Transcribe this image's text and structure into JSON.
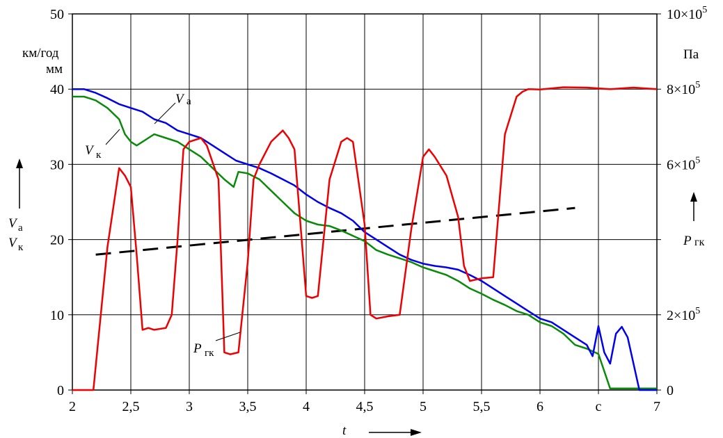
{
  "chart_data": {
    "type": "line",
    "xlim": [
      2,
      7
    ],
    "ylim": [
      0,
      50
    ],
    "y2lim": [
      0,
      1000000
    ],
    "grid": true,
    "x_ticks": [
      "2",
      "2,5",
      "3",
      "3,5",
      "4",
      "4,5",
      "5",
      "5,5",
      "6",
      "c",
      "7"
    ],
    "y_ticks": [
      "0",
      "10",
      "20",
      "30",
      "40",
      "50"
    ],
    "y2_ticks": [
      {
        "value": 0,
        "mant": "0",
        "exp": ""
      },
      {
        "value": 200000,
        "mant": "2×10",
        "exp": "5"
      },
      {
        "value": 600000,
        "mant": "6×10",
        "exp": "5"
      },
      {
        "value": 800000,
        "mant": "8×10",
        "exp": "5"
      },
      {
        "value": 1000000,
        "mant": "10×10",
        "exp": "5"
      }
    ],
    "left_units": [
      "км/год",
      "мм"
    ],
    "right_unit": "Па",
    "x_label": "t",
    "left_axis_label": {
      "var1": "V",
      "sub1": "а",
      "var2": "V",
      "sub2": "к"
    },
    "right_axis_label": {
      "var": "P",
      "sub": "гк"
    },
    "series": [
      {
        "name": "V",
        "sub": "а",
        "color": "#0000ee",
        "axis": "left",
        "x": [
          2.0,
          2.1,
          2.2,
          2.3,
          2.4,
          2.5,
          2.6,
          2.7,
          2.8,
          2.9,
          3.0,
          3.1,
          3.2,
          3.3,
          3.4,
          3.5,
          3.6,
          3.7,
          3.8,
          3.9,
          4.0,
          4.1,
          4.2,
          4.3,
          4.4,
          4.5,
          4.6,
          4.7,
          4.8,
          4.9,
          5.0,
          5.1,
          5.2,
          5.3,
          5.4,
          5.5,
          5.6,
          5.7,
          5.8,
          5.9,
          6.0,
          6.1,
          6.2,
          6.3,
          6.4,
          6.45,
          6.5,
          6.55,
          6.6,
          6.65,
          6.7,
          6.75,
          6.8,
          6.85,
          7.0
        ],
        "y": [
          40.0,
          40.0,
          39.5,
          38.8,
          38.0,
          37.5,
          37.0,
          36.0,
          35.5,
          34.5,
          34.0,
          33.5,
          32.5,
          31.5,
          30.5,
          30.0,
          29.5,
          28.8,
          28.0,
          27.2,
          26.0,
          25.0,
          24.2,
          23.5,
          22.5,
          21.0,
          20.0,
          19.0,
          18.0,
          17.3,
          16.8,
          16.5,
          16.3,
          16.0,
          15.3,
          14.5,
          13.5,
          12.5,
          11.5,
          10.5,
          9.5,
          9.0,
          8.0,
          7.0,
          6.0,
          4.5,
          8.5,
          5.0,
          3.5,
          7.5,
          8.4,
          7.0,
          3.5,
          0.0,
          0.0
        ]
      },
      {
        "name": "V",
        "sub": "к",
        "color": "#0a8a0a",
        "axis": "left",
        "x": [
          2.0,
          2.1,
          2.2,
          2.3,
          2.4,
          2.45,
          2.5,
          2.55,
          2.6,
          2.65,
          2.7,
          2.8,
          2.9,
          3.0,
          3.1,
          3.2,
          3.3,
          3.38,
          3.42,
          3.5,
          3.6,
          3.7,
          3.8,
          3.9,
          4.0,
          4.1,
          4.2,
          4.3,
          4.4,
          4.5,
          4.6,
          4.7,
          4.8,
          4.9,
          5.0,
          5.1,
          5.2,
          5.3,
          5.4,
          5.5,
          5.6,
          5.7,
          5.8,
          5.9,
          6.0,
          6.1,
          6.2,
          6.3,
          6.4,
          6.5,
          6.55,
          6.6,
          6.7,
          6.8,
          7.0
        ],
        "y": [
          39.0,
          39.0,
          38.5,
          37.5,
          36.0,
          34.0,
          33.0,
          32.5,
          33.0,
          33.5,
          34.0,
          33.5,
          33.0,
          32.0,
          31.0,
          29.5,
          28.0,
          27.0,
          29.0,
          28.8,
          28.0,
          26.5,
          25.0,
          23.5,
          22.5,
          22.0,
          21.8,
          21.2,
          20.5,
          19.8,
          18.6,
          18.0,
          17.5,
          17.0,
          16.3,
          15.8,
          15.3,
          14.5,
          13.5,
          12.8,
          12.0,
          11.3,
          10.5,
          10.0,
          9.0,
          8.5,
          7.5,
          6.0,
          5.5,
          4.8,
          2.5,
          0.2,
          0.2,
          0.2,
          0.2
        ]
      },
      {
        "name": "P",
        "sub": "гк",
        "color": "#ee0000",
        "axis": "right",
        "x": [
          2.0,
          2.18,
          2.3,
          2.4,
          2.45,
          2.5,
          2.55,
          2.6,
          2.65,
          2.7,
          2.8,
          2.85,
          2.9,
          2.95,
          3.0,
          3.1,
          3.15,
          3.25,
          3.3,
          3.35,
          3.42,
          3.5,
          3.55,
          3.6,
          3.7,
          3.8,
          3.85,
          3.9,
          4.0,
          4.05,
          4.1,
          4.2,
          4.3,
          4.35,
          4.4,
          4.5,
          4.55,
          4.6,
          4.7,
          4.8,
          4.9,
          5.0,
          5.05,
          5.1,
          5.2,
          5.3,
          5.35,
          5.4,
          5.5,
          5.6,
          5.7,
          5.8,
          5.85,
          5.9,
          6.0,
          6.1,
          6.2,
          6.4,
          6.6,
          6.8,
          7.0
        ],
        "y": [
          0,
          0,
          380000,
          590000,
          570000,
          540000,
          360000,
          160000,
          165000,
          160000,
          165000,
          200000,
          400000,
          640000,
          660000,
          670000,
          650000,
          560000,
          100000,
          95000,
          100000,
          340000,
          560000,
          600000,
          660000,
          690000,
          670000,
          640000,
          250000,
          245000,
          250000,
          560000,
          660000,
          670000,
          660000,
          440000,
          200000,
          190000,
          196000,
          200000,
          430000,
          620000,
          640000,
          620000,
          570000,
          460000,
          330000,
          290000,
          297000,
          300000,
          680000,
          780000,
          793000,
          800000,
          799000,
          802000,
          805000,
          804000,
          800000,
          804000,
          800000
        ]
      }
    ],
    "trend": {
      "color": "#000000",
      "style": "dashed",
      "axis": "left",
      "x": [
        2.2,
        6.3
      ],
      "y": [
        18.0,
        24.2
      ]
    }
  }
}
